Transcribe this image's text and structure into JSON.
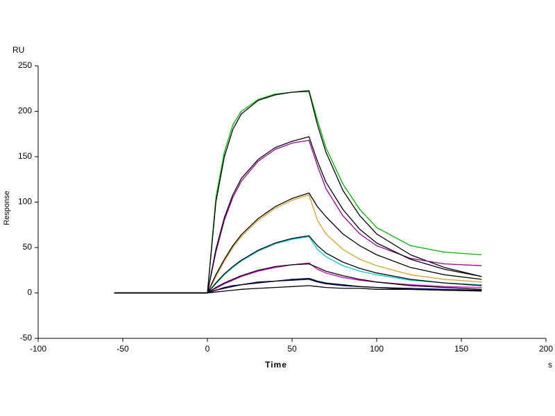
{
  "chart_data": {
    "type": "line",
    "y_unit": "RU",
    "y_label": "Response",
    "x_label": "Time",
    "x_unit": "s",
    "x": [
      -55,
      0,
      5,
      10,
      15,
      20,
      30,
      40,
      50,
      60,
      65,
      70,
      80,
      90,
      100,
      120,
      140,
      162
    ],
    "xlim": [
      -100,
      200
    ],
    "xticks": [
      -100,
      -50,
      0,
      50,
      100,
      150,
      200
    ],
    "ylim": [
      -50,
      250
    ],
    "yticks": [
      -50,
      0,
      50,
      100,
      150,
      200,
      250
    ],
    "series": [
      {
        "color": "#00b000",
        "values": [
          0,
          0,
          105,
          155,
          185,
          200,
          213,
          219,
          221,
          223,
          190,
          160,
          120,
          92,
          72,
          52,
          45,
          42
        ]
      },
      {
        "color": "#000000",
        "values": [
          0,
          0,
          100,
          150,
          180,
          197,
          212,
          218,
          221,
          222,
          185,
          155,
          113,
          85,
          65,
          42,
          28,
          18
        ]
      },
      {
        "color": "#990099",
        "values": [
          0,
          0,
          45,
          80,
          105,
          123,
          145,
          158,
          165,
          168,
          140,
          115,
          85,
          65,
          52,
          38,
          32,
          30
        ]
      },
      {
        "color": "#000000",
        "values": [
          0,
          0,
          48,
          83,
          108,
          126,
          147,
          160,
          167,
          172,
          145,
          122,
          92,
          70,
          55,
          37,
          26,
          18
        ]
      },
      {
        "color": "#d9a030",
        "values": [
          0,
          0,
          18,
          35,
          50,
          62,
          80,
          93,
          102,
          108,
          80,
          65,
          48,
          37,
          30,
          20,
          15,
          12
        ]
      },
      {
        "color": "#000000",
        "values": [
          0,
          0,
          20,
          37,
          52,
          64,
          82,
          95,
          104,
          110,
          95,
          84,
          65,
          52,
          42,
          28,
          20,
          15
        ]
      },
      {
        "color": "#00c8e0",
        "values": [
          0,
          0,
          10,
          20,
          28,
          35,
          46,
          54,
          59,
          62,
          48,
          40,
          30,
          24,
          20,
          14,
          11,
          9
        ]
      },
      {
        "color": "#000000",
        "values": [
          0,
          0,
          11,
          21,
          29,
          36,
          47,
          55,
          60,
          63,
          52,
          44,
          34,
          27,
          22,
          15,
          11,
          8
        ]
      },
      {
        "color": "#cc00cc",
        "values": [
          0,
          0,
          5,
          10,
          14,
          18,
          24,
          28,
          31,
          33,
          26,
          22,
          17,
          14,
          12,
          9,
          7,
          6
        ]
      },
      {
        "color": "#000000",
        "values": [
          0,
          0,
          6,
          11,
          15,
          19,
          25,
          29,
          31,
          32,
          28,
          24,
          19,
          15,
          12,
          8,
          6,
          4
        ]
      },
      {
        "color": "#000080",
        "values": [
          0,
          0,
          3,
          5,
          7,
          9,
          11,
          13,
          14,
          15,
          12,
          10,
          8,
          7,
          6,
          5,
          4,
          3
        ]
      },
      {
        "color": "#000000",
        "values": [
          0,
          0,
          3,
          6,
          8,
          9,
          12,
          13,
          15,
          16,
          13,
          11,
          9,
          7,
          6,
          4,
          3,
          2
        ]
      },
      {
        "color": "#000000",
        "values": [
          0,
          0,
          1,
          2,
          3,
          4,
          5,
          6,
          7,
          8,
          7,
          6,
          5,
          5,
          4,
          4,
          3,
          3
        ]
      }
    ]
  }
}
